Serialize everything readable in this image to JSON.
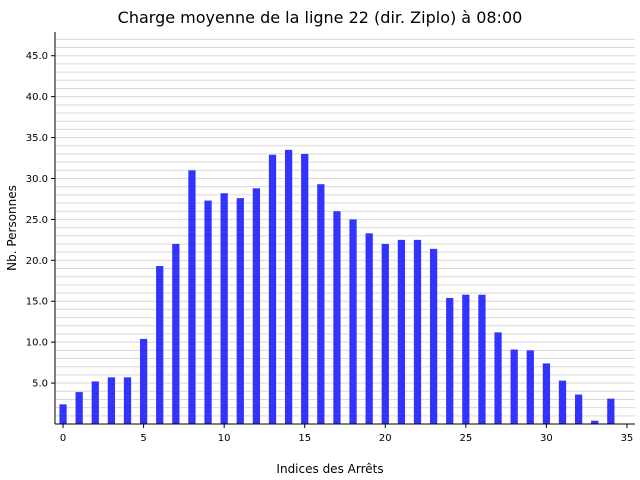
{
  "chart_data": {
    "type": "bar",
    "title": "Charge moyenne de la ligne 22 (dir. Ziplo) à 08:00",
    "xlabel": "Indices des Arrêts",
    "ylabel": "Nb. Personnes",
    "x": [
      0,
      1,
      2,
      3,
      4,
      5,
      6,
      7,
      8,
      9,
      10,
      11,
      12,
      13,
      14,
      15,
      16,
      17,
      18,
      19,
      20,
      21,
      22,
      23,
      24,
      25,
      26,
      27,
      28,
      29,
      30,
      31,
      32,
      33,
      34
    ],
    "values": [
      2.4,
      3.9,
      5.2,
      5.7,
      5.7,
      10.4,
      19.3,
      22.0,
      31.0,
      27.3,
      28.2,
      27.6,
      28.8,
      32.9,
      33.5,
      33.0,
      29.3,
      26.0,
      25.0,
      23.3,
      22.0,
      22.5,
      22.5,
      21.4,
      15.4,
      15.8,
      15.8,
      11.2,
      9.1,
      9.0,
      7.4,
      5.3,
      3.6,
      0.4,
      3.1
    ],
    "xlim": [
      -0.5,
      35.5
    ],
    "ylim": [
      0,
      47.9
    ],
    "x_ticks": [
      "0",
      "5",
      "10",
      "15",
      "20",
      "25",
      "30",
      "35"
    ],
    "y_ticks": [
      "5.0",
      "10.0",
      "15.0",
      "20.0",
      "25.0",
      "30.0",
      "35.0",
      "40.0",
      "45.0"
    ],
    "grid": "horizontal minor lines",
    "bar_color": "#3333ff"
  }
}
